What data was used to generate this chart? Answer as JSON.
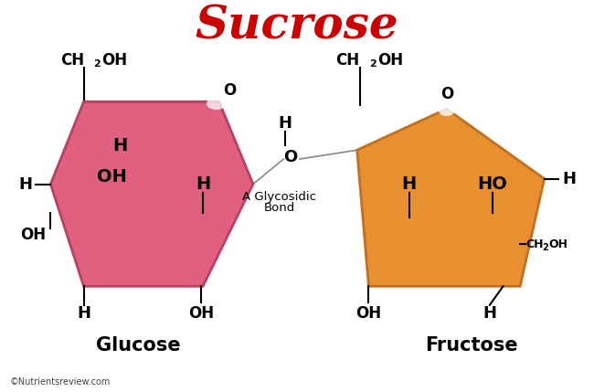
{
  "title": "Sucrose",
  "title_color": "#cc0000",
  "title_fontsize": 36,
  "bg_color": "#ffffff",
  "glucose_color": "#e06080",
  "glucose_edge_color": "#b84060",
  "fructose_color": "#e89030",
  "fructose_edge_color": "#c07020",
  "glucose_label": "Glucose",
  "fructose_label": "Fructose",
  "copyright": "©Nutrientsreview.com",
  "glycosidic_line1": "A Glycosidic",
  "glycosidic_line2": "Bond"
}
